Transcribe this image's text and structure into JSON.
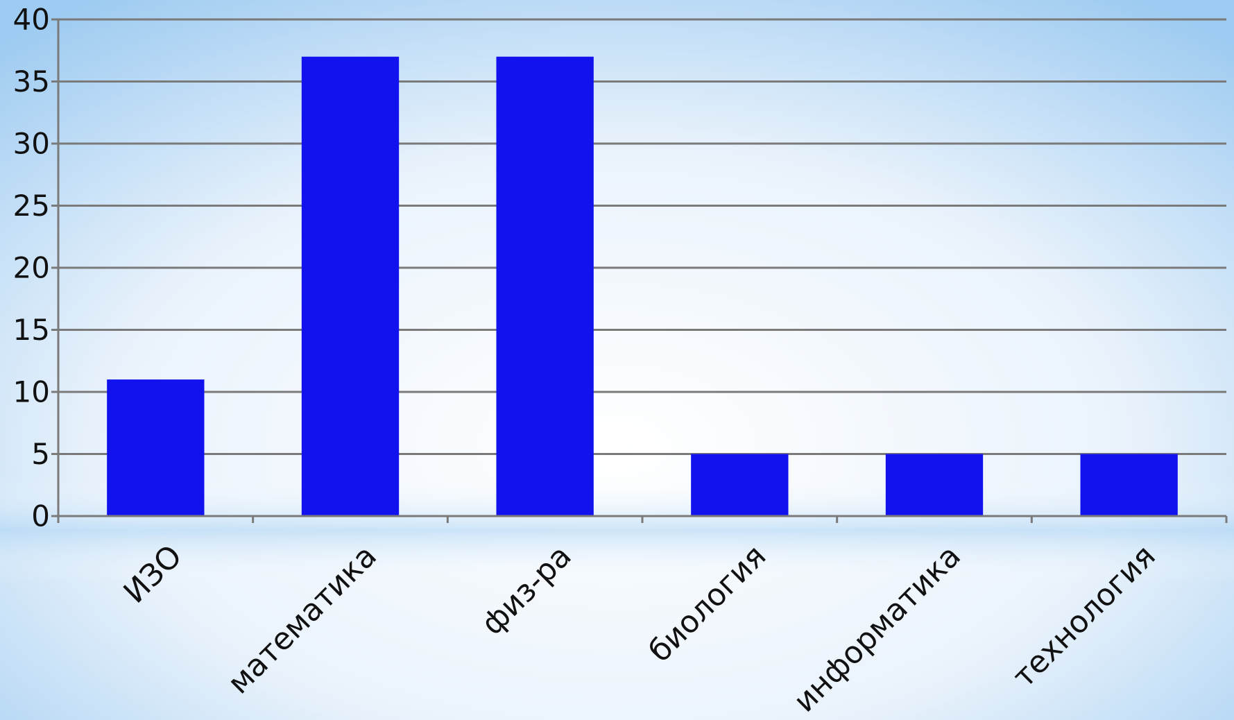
{
  "chart_data": {
    "type": "bar",
    "categories": [
      "ИЗО",
      "математика",
      "физ-ра",
      "биология",
      "информатика",
      "технология"
    ],
    "values": [
      11,
      37,
      37,
      5,
      5,
      5
    ],
    "title": "",
    "xlabel": "",
    "ylabel": "",
    "ylim": [
      0,
      40
    ],
    "yticks": [
      0,
      5,
      10,
      15,
      20,
      25,
      30,
      35,
      40
    ],
    "grid": true,
    "legend": "none",
    "bar_color": "#1212EE",
    "grid_color": "#7a7a7a",
    "background_colors": [
      "#eef5fc",
      "#9cc9f0"
    ]
  }
}
